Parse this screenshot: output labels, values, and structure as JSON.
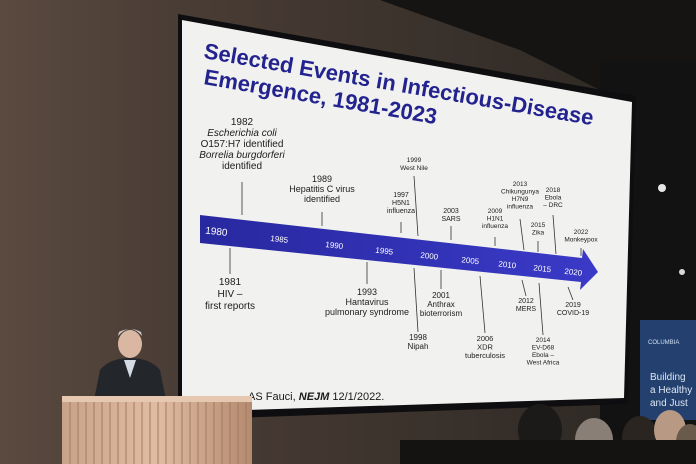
{
  "slide": {
    "title_line1": "Selected Events in Infectious-Disease",
    "title_line2": "Emergence, 1981-2023",
    "citation_author": "AS Fauci, ",
    "citation_journal": "NEJM",
    "citation_date": " 12/1/2022.",
    "timeline_years": [
      "1980",
      "1985",
      "1990",
      "1995",
      "2000",
      "2005",
      "2010",
      "2015",
      "2020"
    ],
    "events_above": [
      {
        "year": "1982",
        "l1": "Escherichia coli",
        "l2": "O157:H7 identified",
        "l3": "Borrelia burgdorferi",
        "l4": "identified"
      },
      {
        "year": "1989",
        "l1": "Hepatitis C virus",
        "l2": "identified"
      },
      {
        "year": "1999",
        "l1": "West Nile"
      },
      {
        "year": "1997",
        "l1": "H5N1",
        "l2": "influenza"
      },
      {
        "year": "2003",
        "l1": "SARS"
      },
      {
        "year": "2009",
        "l1": "H1N1",
        "l2": "influenza"
      },
      {
        "year": "2013",
        "l1": "Chikungunya",
        "l2": "H7N9",
        "l3": "influenza"
      },
      {
        "year": "2015",
        "l1": "Zika"
      },
      {
        "year": "2018",
        "l1": "Ebola",
        "l2": "– DRC"
      },
      {
        "year": "2022",
        "l1": "Monkeypox"
      }
    ],
    "events_below": [
      {
        "year": "1981",
        "l1": "HIV –",
        "l2": "first reports"
      },
      {
        "year": "1993",
        "l1": "Hantavirus",
        "l2": "pulmonary syndrome"
      },
      {
        "year": "1998",
        "l1": "Nipah"
      },
      {
        "year": "2001",
        "l1": "Anthrax",
        "l2": "bioterrorism"
      },
      {
        "year": "2006",
        "l1": "XDR",
        "l2": "tuberculosis"
      },
      {
        "year": "2012",
        "l1": "MERS"
      },
      {
        "year": "2014",
        "l1": "EV-D68",
        "l2": "Ebola –",
        "l3": "West Africa"
      },
      {
        "year": "2019",
        "l1": "COVID-19"
      }
    ]
  },
  "banner": {
    "logo": "COLUMBIA",
    "line1": "Building",
    "line2": "a Healthy",
    "line3": "and Just"
  },
  "colors": {
    "title": "#23238f",
    "arrow": "#2a2aa8",
    "slide_bg": "#f1f1ef"
  }
}
